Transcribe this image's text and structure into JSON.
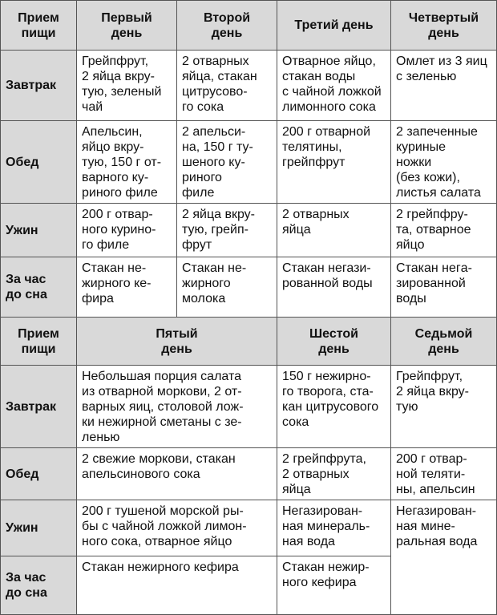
{
  "part1": {
    "headers": [
      "Прием\nпищи",
      "Первый\nдень",
      "Второй\nдень",
      "Третий день",
      "Четвертый\nдень"
    ],
    "rows": [
      {
        "meal": "Завтрак",
        "cells": [
          "Грейпфрут,\n2 яйца вкру-\nтую, зеленый\nчай",
          "2 отварных\nяйца, стакан\nцитрусово-\nго сока",
          "Отварное яйцо,\nстакан воды\nс чайной ложкой\nлимонного сока",
          "Омлет из 3 яиц\nс зеленью"
        ]
      },
      {
        "meal": "Обед",
        "cells": [
          "Апельсин,\nяйцо вкру-\nтую, 150 г от-\nварного ку-\nриного филе",
          "2 апельси-\nна, 150 г ту-\nшеного ку-\nриного\nфиле",
          "200 г отварной\nтелятины,\nгрейпфрут",
          "2 запеченные\nкуриные\nножки\n(без кожи),\nлистья салата"
        ]
      },
      {
        "meal": "Ужин",
        "cells": [
          "200 г отвар-\nного курино-\nго филе",
          "2 яйца вкру-\nтую, грейп-\nфрут",
          "2 отварных\nяйца",
          "2 грейпфру-\nта, отварное\nяйцо"
        ]
      },
      {
        "meal": "За час\nдо сна",
        "cells": [
          "Стакан не-\nжирного ке-\nфира",
          "Стакан не-\nжирного\nмолока",
          "Стакан негази-\nрованной воды",
          "Стакан негa-\nзированной\nводы"
        ]
      }
    ]
  },
  "part2": {
    "headers": [
      "Прием\nпищи",
      "Пятый\nдень",
      "Шестой\nдень",
      "Седьмой\nдень"
    ],
    "rows": [
      {
        "meal": "Завтрак",
        "cells": [
          "Небольшая порция салата\nиз отварной моркови, 2 от-\nварных яиц, столовой лож-\nки нежирной сметаны с зе-\nленью",
          "150 г нежирно-\nго творога, ста-\nкан цитрусового\nсока",
          "Грейпфрут,\n2 яйца вкру-\nтую"
        ]
      },
      {
        "meal": "Обед",
        "cells": [
          "2 свежие моркови, стакан\nапельсинового сока",
          "2 грейпфрута,\n2 отварных\nяйца",
          "200 г отвар-\nной теляти-\nны, апельсин"
        ]
      },
      {
        "meal": "Ужин",
        "cells": [
          "200 г тушеной морской ры-\nбы с чайной ложкой лимон-\nного сока, отварное яйцо",
          "Негазирован-\nная минераль-\nная вода",
          "Негазирован-\nная мине-\nральная вода"
        ]
      },
      {
        "meal": "За час\nдо сна",
        "cells": [
          "Стакан нежирного кефира",
          "Стакан нежир-\nного кефира"
        ]
      }
    ]
  }
}
